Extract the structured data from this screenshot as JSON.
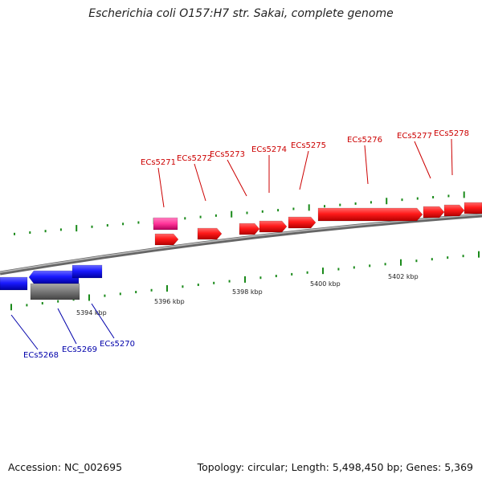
{
  "title": "Escherichia coli O157:H7 str. Sakai, complete genome",
  "footer": {
    "accession": "Accession: NC_002695",
    "summary": "Topology: circular; Length: 5,498,450 bp; Genes: 5,369"
  },
  "colors": {
    "forward_cds": "#ff1a1a",
    "forward_other": "#ff3399",
    "reverse_cds": "#1a1aff",
    "reverse_other": "#777777",
    "backbone": "#888888",
    "ticks": "#1a8a1a",
    "forward_label": "#cc0000",
    "reverse_label": "#0000aa"
  },
  "chart_data": {
    "type": "genome_map",
    "axis_unit": "kbp",
    "axis_labels": [
      {
        "value": 5394,
        "text": "5394 kbp"
      },
      {
        "value": 5396,
        "text": "5396 kbp"
      },
      {
        "value": 5398,
        "text": "5398 kbp"
      },
      {
        "value": 5400,
        "text": "5400 kbp"
      },
      {
        "value": 5402,
        "text": "5402 kbp"
      }
    ],
    "forward_genes": [
      {
        "name": "ECs5271"
      },
      {
        "name": "ECs5272"
      },
      {
        "name": "ECs5273"
      },
      {
        "name": "ECs5274"
      },
      {
        "name": "ECs5275"
      },
      {
        "name": "ECs5276"
      },
      {
        "name": "ECs5277"
      },
      {
        "name": "ECs5278"
      }
    ],
    "reverse_genes": [
      {
        "name": "ECs5268"
      },
      {
        "name": "ECs5269"
      },
      {
        "name": "ECs5270"
      }
    ]
  }
}
